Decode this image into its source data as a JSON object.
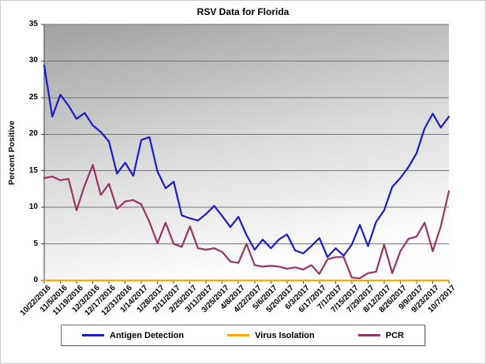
{
  "title": "RSV Data for Florida",
  "y_axis_title": "Percent Positive",
  "chart_data": {
    "type": "line",
    "title": "RSV Data for Florida",
    "ylabel": "Percent Positive",
    "xlabel": "",
    "ylim": [
      0,
      35
    ],
    "y_ticks": [
      0,
      5,
      10,
      15,
      20,
      25,
      30,
      35
    ],
    "grid": true,
    "legend_position": "bottom",
    "x_labels": [
      "10/22/2016",
      "11/5/2016",
      "11/19/2016",
      "12/3/2016",
      "12/17/2016",
      "12/31/2016",
      "1/14/2017",
      "1/28/2017",
      "2/11/2017",
      "2/25/2017",
      "3/11/2017",
      "3/25/2017",
      "4/8/2017",
      "4/22/2017",
      "5/6/2017",
      "5/20/2017",
      "6/3/2017",
      "6/17/2017",
      "7/1/2017",
      "7/15/2017",
      "7/29/2017",
      "8/12/2017",
      "8/26/2017",
      "9/9/2017",
      "9/23/2017",
      "10/7/2017"
    ],
    "x_label_step": 2,
    "series": [
      {
        "name": "Antigen Detection",
        "color": "#1a1acd",
        "values": [
          29.4,
          22.4,
          25.4,
          23.9,
          22.1,
          22.9,
          21.2,
          20.3,
          19.0,
          14.6,
          16.1,
          14.3,
          19.2,
          19.6,
          14.9,
          12.6,
          13.5,
          8.9,
          8.5,
          8.2,
          9.1,
          10.2,
          8.8,
          7.3,
          8.7,
          6.2,
          4.2,
          5.6,
          4.4,
          5.6,
          6.3,
          4.1,
          3.7,
          4.7,
          5.8,
          3.2,
          4.4,
          3.4,
          4.9,
          7.6,
          4.7,
          8.0,
          9.6,
          12.8,
          14.0,
          15.5,
          17.4,
          20.8,
          22.8,
          20.9,
          22.4
        ]
      },
      {
        "name": "Virus Isolation",
        "color": "#ffa500",
        "values": [
          0,
          0,
          0,
          0,
          0,
          0,
          0,
          0,
          0,
          0,
          0,
          0,
          0,
          0,
          0,
          0,
          0,
          0,
          0,
          0,
          0,
          0,
          0,
          0,
          0,
          0,
          0,
          0,
          0,
          0,
          0,
          0,
          0,
          0,
          0,
          0,
          0,
          0,
          0,
          0,
          0,
          0,
          0,
          0,
          0,
          0,
          0,
          0,
          0,
          0,
          0
        ]
      },
      {
        "name": "PCR",
        "color": "#993366",
        "values": [
          14.0,
          14.2,
          13.7,
          13.9,
          9.6,
          13.0,
          15.8,
          11.7,
          13.2,
          9.8,
          10.8,
          11.0,
          10.4,
          8.0,
          5.1,
          7.9,
          5.0,
          4.6,
          7.4,
          4.4,
          4.2,
          4.4,
          3.9,
          2.6,
          2.4,
          5.0,
          2.1,
          1.9,
          2.0,
          1.9,
          1.6,
          1.8,
          1.5,
          2.1,
          0.9,
          2.9,
          3.2,
          3.2,
          0.4,
          0.3,
          1.0,
          1.2,
          4.9,
          1.0,
          4.0,
          5.7,
          6.0,
          7.9,
          4.0,
          7.4,
          12.2
        ]
      }
    ]
  }
}
